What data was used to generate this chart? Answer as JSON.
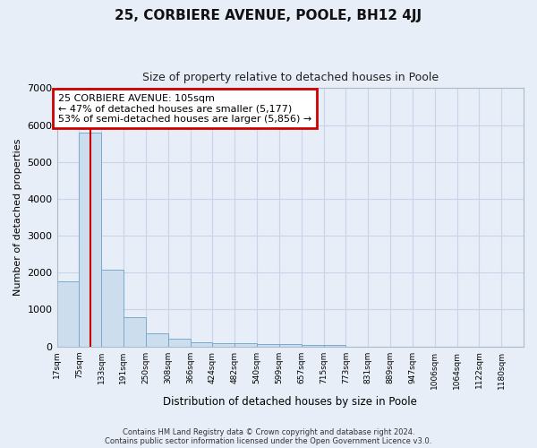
{
  "title": "25, CORBIERE AVENUE, POOLE, BH12 4JJ",
  "subtitle": "Size of property relative to detached houses in Poole",
  "xlabel": "Distribution of detached houses by size in Poole",
  "ylabel": "Number of detached properties",
  "bar_color": "#ccdded",
  "bar_edge_color": "#7aaacc",
  "grid_color": "#c8d4e8",
  "bin_edges": [
    17,
    75,
    133,
    191,
    250,
    308,
    366,
    424,
    482,
    540,
    599,
    657,
    715,
    773,
    831,
    889,
    947,
    1006,
    1064,
    1122,
    1180
  ],
  "bar_heights": [
    1760,
    5800,
    2080,
    800,
    350,
    210,
    120,
    100,
    90,
    70,
    55,
    45,
    30,
    0,
    0,
    0,
    0,
    0,
    0,
    0
  ],
  "property_size": 105,
  "vline_color": "#cc0000",
  "annotation_text": "25 CORBIERE AVENUE: 105sqm\n← 47% of detached houses are smaller (5,177)\n53% of semi-detached houses are larger (5,856) →",
  "annotation_box_color": "white",
  "annotation_box_edge_color": "#cc0000",
  "ylim": [
    0,
    7000
  ],
  "yticks": [
    0,
    1000,
    2000,
    3000,
    4000,
    5000,
    6000,
    7000
  ],
  "footnote": "Contains HM Land Registry data © Crown copyright and database right 2024.\nContains public sector information licensed under the Open Government Licence v3.0.",
  "background_color": "#e8eef8"
}
